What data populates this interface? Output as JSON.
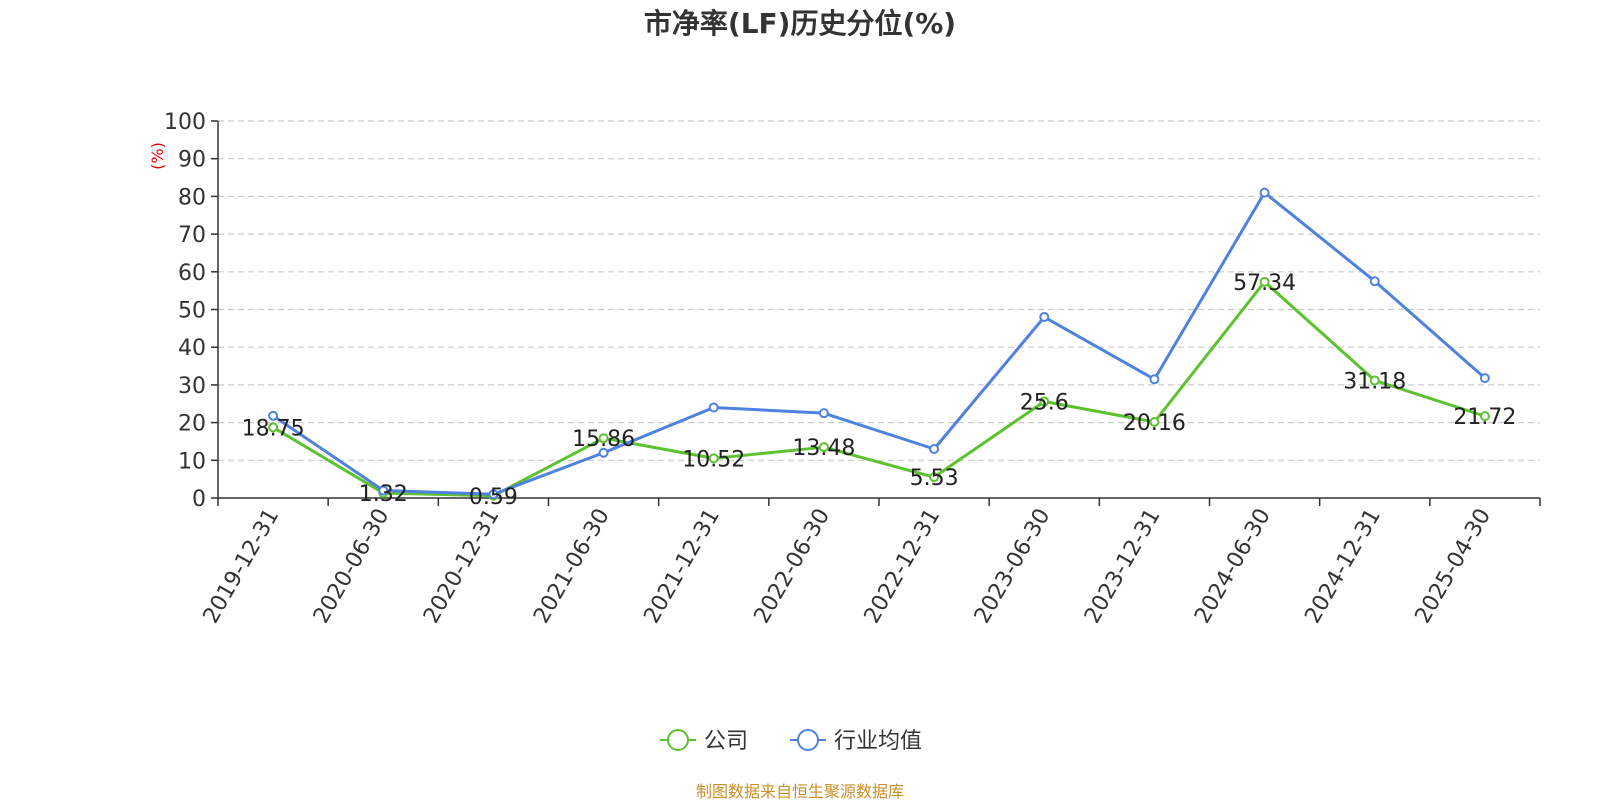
{
  "page": {
    "title": "市净率(LF)历史分位(%)",
    "source": "制图数据来自恒生聚源数据库"
  },
  "colors": {
    "company": "#5cc22f",
    "industry": "#4f81df",
    "unit_label": "#dd0000",
    "axis": "#333333",
    "grid": "#cccccc",
    "source_text": "#c8902a"
  },
  "chart_data": {
    "type": "line",
    "title": "市净率(LF)历史分位(%)",
    "ylabel": "(%)",
    "xlabel": "",
    "ylim": [
      0,
      100
    ],
    "yticks": [
      0,
      10,
      20,
      30,
      40,
      50,
      60,
      70,
      80,
      90,
      100
    ],
    "grid": true,
    "legend_position": "bottom-center",
    "x": [
      "2019-12-31",
      "2020-06-30",
      "2020-12-31",
      "2021-06-30",
      "2021-12-31",
      "2022-06-30",
      "2022-12-31",
      "2023-06-30",
      "2023-12-31",
      "2024-06-30",
      "2024-12-31",
      "2025-04-30"
    ],
    "series": [
      {
        "name": "公司",
        "color": "#5cc22f",
        "values": [
          18.75,
          1.32,
          0.59,
          15.86,
          10.52,
          13.48,
          5.53,
          25.6,
          20.16,
          57.34,
          31.18,
          21.72
        ],
        "data_labels": [
          "18.75",
          "1.32",
          "0.59",
          "15.86",
          "10.52",
          "13.48",
          "5.53",
          "25.6",
          "20.16",
          "57.34",
          "31.18",
          "21.72"
        ]
      },
      {
        "name": "行业均值",
        "color": "#4f81df",
        "values": [
          21.8,
          2.0,
          1.0,
          12.0,
          24.0,
          22.5,
          13.0,
          48.0,
          31.5,
          81.0,
          57.5,
          31.8
        ]
      }
    ]
  }
}
